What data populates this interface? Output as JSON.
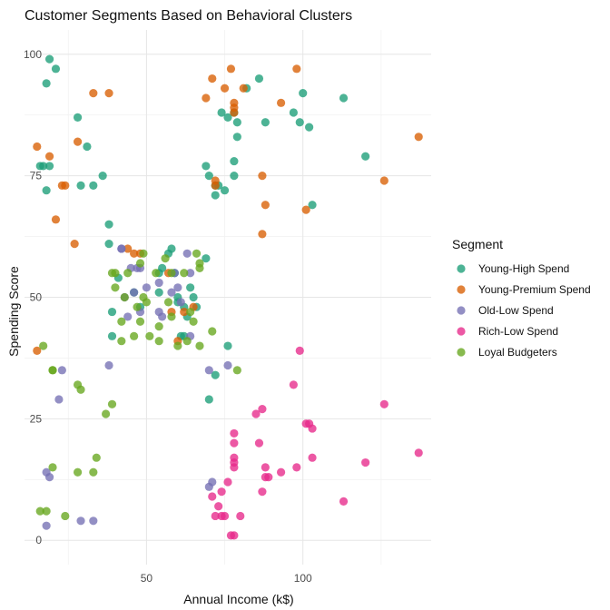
{
  "chart_data": {
    "type": "scatter",
    "title": "Customer Segments Based on Behavioral Clusters",
    "xlabel": "Annual Income (k$)",
    "ylabel": "Spending Score",
    "xlim": [
      11,
      141
    ],
    "ylim": [
      -5,
      105
    ],
    "x_ticks": [
      50,
      100
    ],
    "y_ticks": [
      0,
      25,
      50,
      75,
      100
    ],
    "x_minor_ticks": [
      25,
      75,
      125
    ],
    "y_minor_ticks": [
      12.5,
      37.5,
      62.5,
      87.5
    ],
    "grid": true,
    "legend": {
      "title": "Segment",
      "position": "right"
    },
    "series": [
      {
        "name": "Young-High Spend",
        "color": "#1B9E77",
        "points": [
          [
            19,
            99
          ],
          [
            21,
            97
          ],
          [
            18,
            94
          ],
          [
            28,
            87
          ],
          [
            17,
            77
          ],
          [
            19,
            77
          ],
          [
            16,
            77
          ],
          [
            18,
            72
          ],
          [
            29,
            73
          ],
          [
            31,
            81
          ],
          [
            33,
            73
          ],
          [
            36,
            75
          ],
          [
            38,
            65
          ],
          [
            38,
            61
          ],
          [
            69,
            77
          ],
          [
            70,
            75
          ],
          [
            72,
            71
          ],
          [
            73,
            73
          ],
          [
            75,
            72
          ],
          [
            78,
            75
          ],
          [
            78,
            78
          ],
          [
            79,
            83
          ],
          [
            76,
            87
          ],
          [
            78,
            88
          ],
          [
            74,
            88
          ],
          [
            79,
            86
          ],
          [
            82,
            93
          ],
          [
            86,
            95
          ],
          [
            88,
            86
          ],
          [
            97,
            88
          ],
          [
            99,
            86
          ],
          [
            102,
            85
          ],
          [
            100,
            92
          ],
          [
            113,
            91
          ],
          [
            120,
            79
          ],
          [
            103,
            69
          ],
          [
            41,
            54
          ],
          [
            46,
            51
          ],
          [
            48,
            48
          ],
          [
            54,
            55
          ],
          [
            54,
            51
          ],
          [
            55,
            56
          ],
          [
            57,
            59
          ],
          [
            58,
            60
          ],
          [
            59,
            55
          ],
          [
            60,
            50
          ],
          [
            60,
            49
          ],
          [
            61,
            42
          ],
          [
            62,
            42
          ],
          [
            62,
            48
          ],
          [
            63,
            46
          ],
          [
            64,
            52
          ],
          [
            65,
            50
          ],
          [
            66,
            48
          ],
          [
            69,
            58
          ],
          [
            70,
            29
          ],
          [
            72,
            34
          ],
          [
            76,
            40
          ],
          [
            39,
            47
          ],
          [
            39,
            42
          ],
          [
            72,
            73
          ]
        ]
      },
      {
        "name": "Young-Premium Spend",
        "color": "#D95F02",
        "points": [
          [
            15,
            81
          ],
          [
            15,
            39
          ],
          [
            19,
            79
          ],
          [
            21,
            66
          ],
          [
            23,
            73
          ],
          [
            24,
            73
          ],
          [
            27,
            61
          ],
          [
            28,
            82
          ],
          [
            33,
            92
          ],
          [
            38,
            92
          ],
          [
            69,
            91
          ],
          [
            71,
            95
          ],
          [
            72,
            73
          ],
          [
            72,
            74
          ],
          [
            75,
            93
          ],
          [
            77,
            97
          ],
          [
            78,
            89
          ],
          [
            78,
            90
          ],
          [
            78,
            88
          ],
          [
            81,
            93
          ],
          [
            87,
            75
          ],
          [
            87,
            63
          ],
          [
            88,
            69
          ],
          [
            93,
            90
          ],
          [
            98,
            97
          ],
          [
            101,
            68
          ],
          [
            126,
            74
          ],
          [
            137,
            83
          ],
          [
            44,
            60
          ],
          [
            46,
            59
          ],
          [
            48,
            59
          ],
          [
            57,
            55
          ],
          [
            58,
            47
          ],
          [
            60,
            41
          ],
          [
            62,
            47
          ],
          [
            65,
            48
          ]
        ]
      },
      {
        "name": "Old-Low Spend",
        "color": "#7570B3",
        "points": [
          [
            18,
            3
          ],
          [
            18,
            14
          ],
          [
            19,
            13
          ],
          [
            22,
            29
          ],
          [
            23,
            35
          ],
          [
            29,
            4
          ],
          [
            33,
            4
          ],
          [
            38,
            36
          ],
          [
            42,
            60
          ],
          [
            43,
            50
          ],
          [
            44,
            46
          ],
          [
            45,
            56
          ],
          [
            46,
            51
          ],
          [
            47,
            56
          ],
          [
            48,
            56
          ],
          [
            48,
            47
          ],
          [
            50,
            52
          ],
          [
            54,
            53
          ],
          [
            54,
            47
          ],
          [
            55,
            46
          ],
          [
            58,
            51
          ],
          [
            59,
            55
          ],
          [
            60,
            52
          ],
          [
            61,
            49
          ],
          [
            63,
            59
          ],
          [
            64,
            42
          ],
          [
            64,
            55
          ],
          [
            70,
            35
          ],
          [
            70,
            11
          ],
          [
            71,
            12
          ],
          [
            76,
            36
          ],
          [
            42,
            60
          ]
        ]
      },
      {
        "name": "Rich-Low Spend",
        "color": "#E7298A",
        "points": [
          [
            71,
            9
          ],
          [
            72,
            5
          ],
          [
            73,
            7
          ],
          [
            74,
            10
          ],
          [
            74,
            5
          ],
          [
            75,
            5
          ],
          [
            76,
            12
          ],
          [
            77,
            1
          ],
          [
            78,
            1
          ],
          [
            78,
            15
          ],
          [
            78,
            16
          ],
          [
            78,
            20
          ],
          [
            78,
            22
          ],
          [
            78,
            17
          ],
          [
            80,
            5
          ],
          [
            85,
            26
          ],
          [
            86,
            20
          ],
          [
            87,
            27
          ],
          [
            87,
            10
          ],
          [
            88,
            13
          ],
          [
            88,
            15
          ],
          [
            89,
            13
          ],
          [
            93,
            14
          ],
          [
            97,
            32
          ],
          [
            98,
            15
          ],
          [
            99,
            39
          ],
          [
            101,
            24
          ],
          [
            102,
            24
          ],
          [
            103,
            23
          ],
          [
            103,
            17
          ],
          [
            113,
            8
          ],
          [
            120,
            16
          ],
          [
            126,
            28
          ],
          [
            137,
            18
          ]
        ]
      },
      {
        "name": "Loyal Budgeters",
        "color": "#66A61E",
        "points": [
          [
            16,
            6
          ],
          [
            17,
            40
          ],
          [
            18,
            6
          ],
          [
            20,
            15
          ],
          [
            20,
            35
          ],
          [
            24,
            5
          ],
          [
            28,
            32
          ],
          [
            28,
            14
          ],
          [
            29,
            31
          ],
          [
            33,
            14
          ],
          [
            34,
            17
          ],
          [
            37,
            26
          ],
          [
            39,
            28
          ],
          [
            39,
            55
          ],
          [
            40,
            52
          ],
          [
            42,
            45
          ],
          [
            42,
            41
          ],
          [
            43,
            50
          ],
          [
            44,
            55
          ],
          [
            46,
            42
          ],
          [
            47,
            48
          ],
          [
            48,
            45
          ],
          [
            48,
            57
          ],
          [
            49,
            50
          ],
          [
            49,
            59
          ],
          [
            50,
            49
          ],
          [
            51,
            42
          ],
          [
            53,
            55
          ],
          [
            54,
            41
          ],
          [
            54,
            44
          ],
          [
            56,
            58
          ],
          [
            57,
            49
          ],
          [
            58,
            46
          ],
          [
            58,
            55
          ],
          [
            60,
            40
          ],
          [
            62,
            55
          ],
          [
            63,
            41
          ],
          [
            64,
            47
          ],
          [
            65,
            45
          ],
          [
            66,
            59
          ],
          [
            67,
            56
          ],
          [
            67,
            40
          ],
          [
            67,
            57
          ],
          [
            71,
            43
          ],
          [
            79,
            35
          ],
          [
            20,
            35
          ],
          [
            40,
            55
          ]
        ]
      }
    ]
  }
}
